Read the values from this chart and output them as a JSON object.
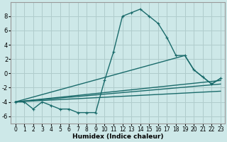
{
  "xlabel": "Humidex (Indice chaleur)",
  "background_color": "#cde8e8",
  "grid_color": "#b0cccc",
  "line_color": "#1a6b6b",
  "xlim": [
    -0.5,
    23.5
  ],
  "ylim": [
    -7,
    10
  ],
  "xticks": [
    0,
    1,
    2,
    3,
    4,
    5,
    6,
    7,
    8,
    9,
    10,
    11,
    12,
    13,
    14,
    15,
    16,
    17,
    18,
    19,
    20,
    21,
    22,
    23
  ],
  "yticks": [
    -6,
    -4,
    -2,
    0,
    2,
    4,
    6,
    8
  ],
  "series": [
    {
      "x": [
        0,
        1,
        2,
        3,
        4,
        5,
        6,
        7,
        8,
        9,
        10,
        11,
        12,
        13,
        14,
        15,
        16,
        17,
        18,
        19,
        20,
        21,
        22,
        23
      ],
      "y": [
        -4,
        -4,
        -5,
        -4,
        -4.5,
        -5,
        -5,
        -5.5,
        -5.5,
        -5.5,
        -1,
        3,
        8,
        8.5,
        9,
        8,
        7,
        5,
        2.5,
        2.5,
        0.5,
        -0.5,
        -1.5,
        -0.7
      ],
      "marker": true
    },
    {
      "x": [
        0,
        19,
        20,
        21,
        22,
        23
      ],
      "y": [
        -4,
        2.5,
        0.5,
        -0.5,
        -1.5,
        -0.7
      ],
      "marker": false
    },
    {
      "x": [
        0,
        23
      ],
      "y": [
        -4,
        -1.0
      ],
      "marker": false
    },
    {
      "x": [
        0,
        23
      ],
      "y": [
        -4,
        -1.5
      ],
      "marker": false
    },
    {
      "x": [
        0,
        23
      ],
      "y": [
        -4,
        -2.5
      ],
      "marker": false
    }
  ]
}
